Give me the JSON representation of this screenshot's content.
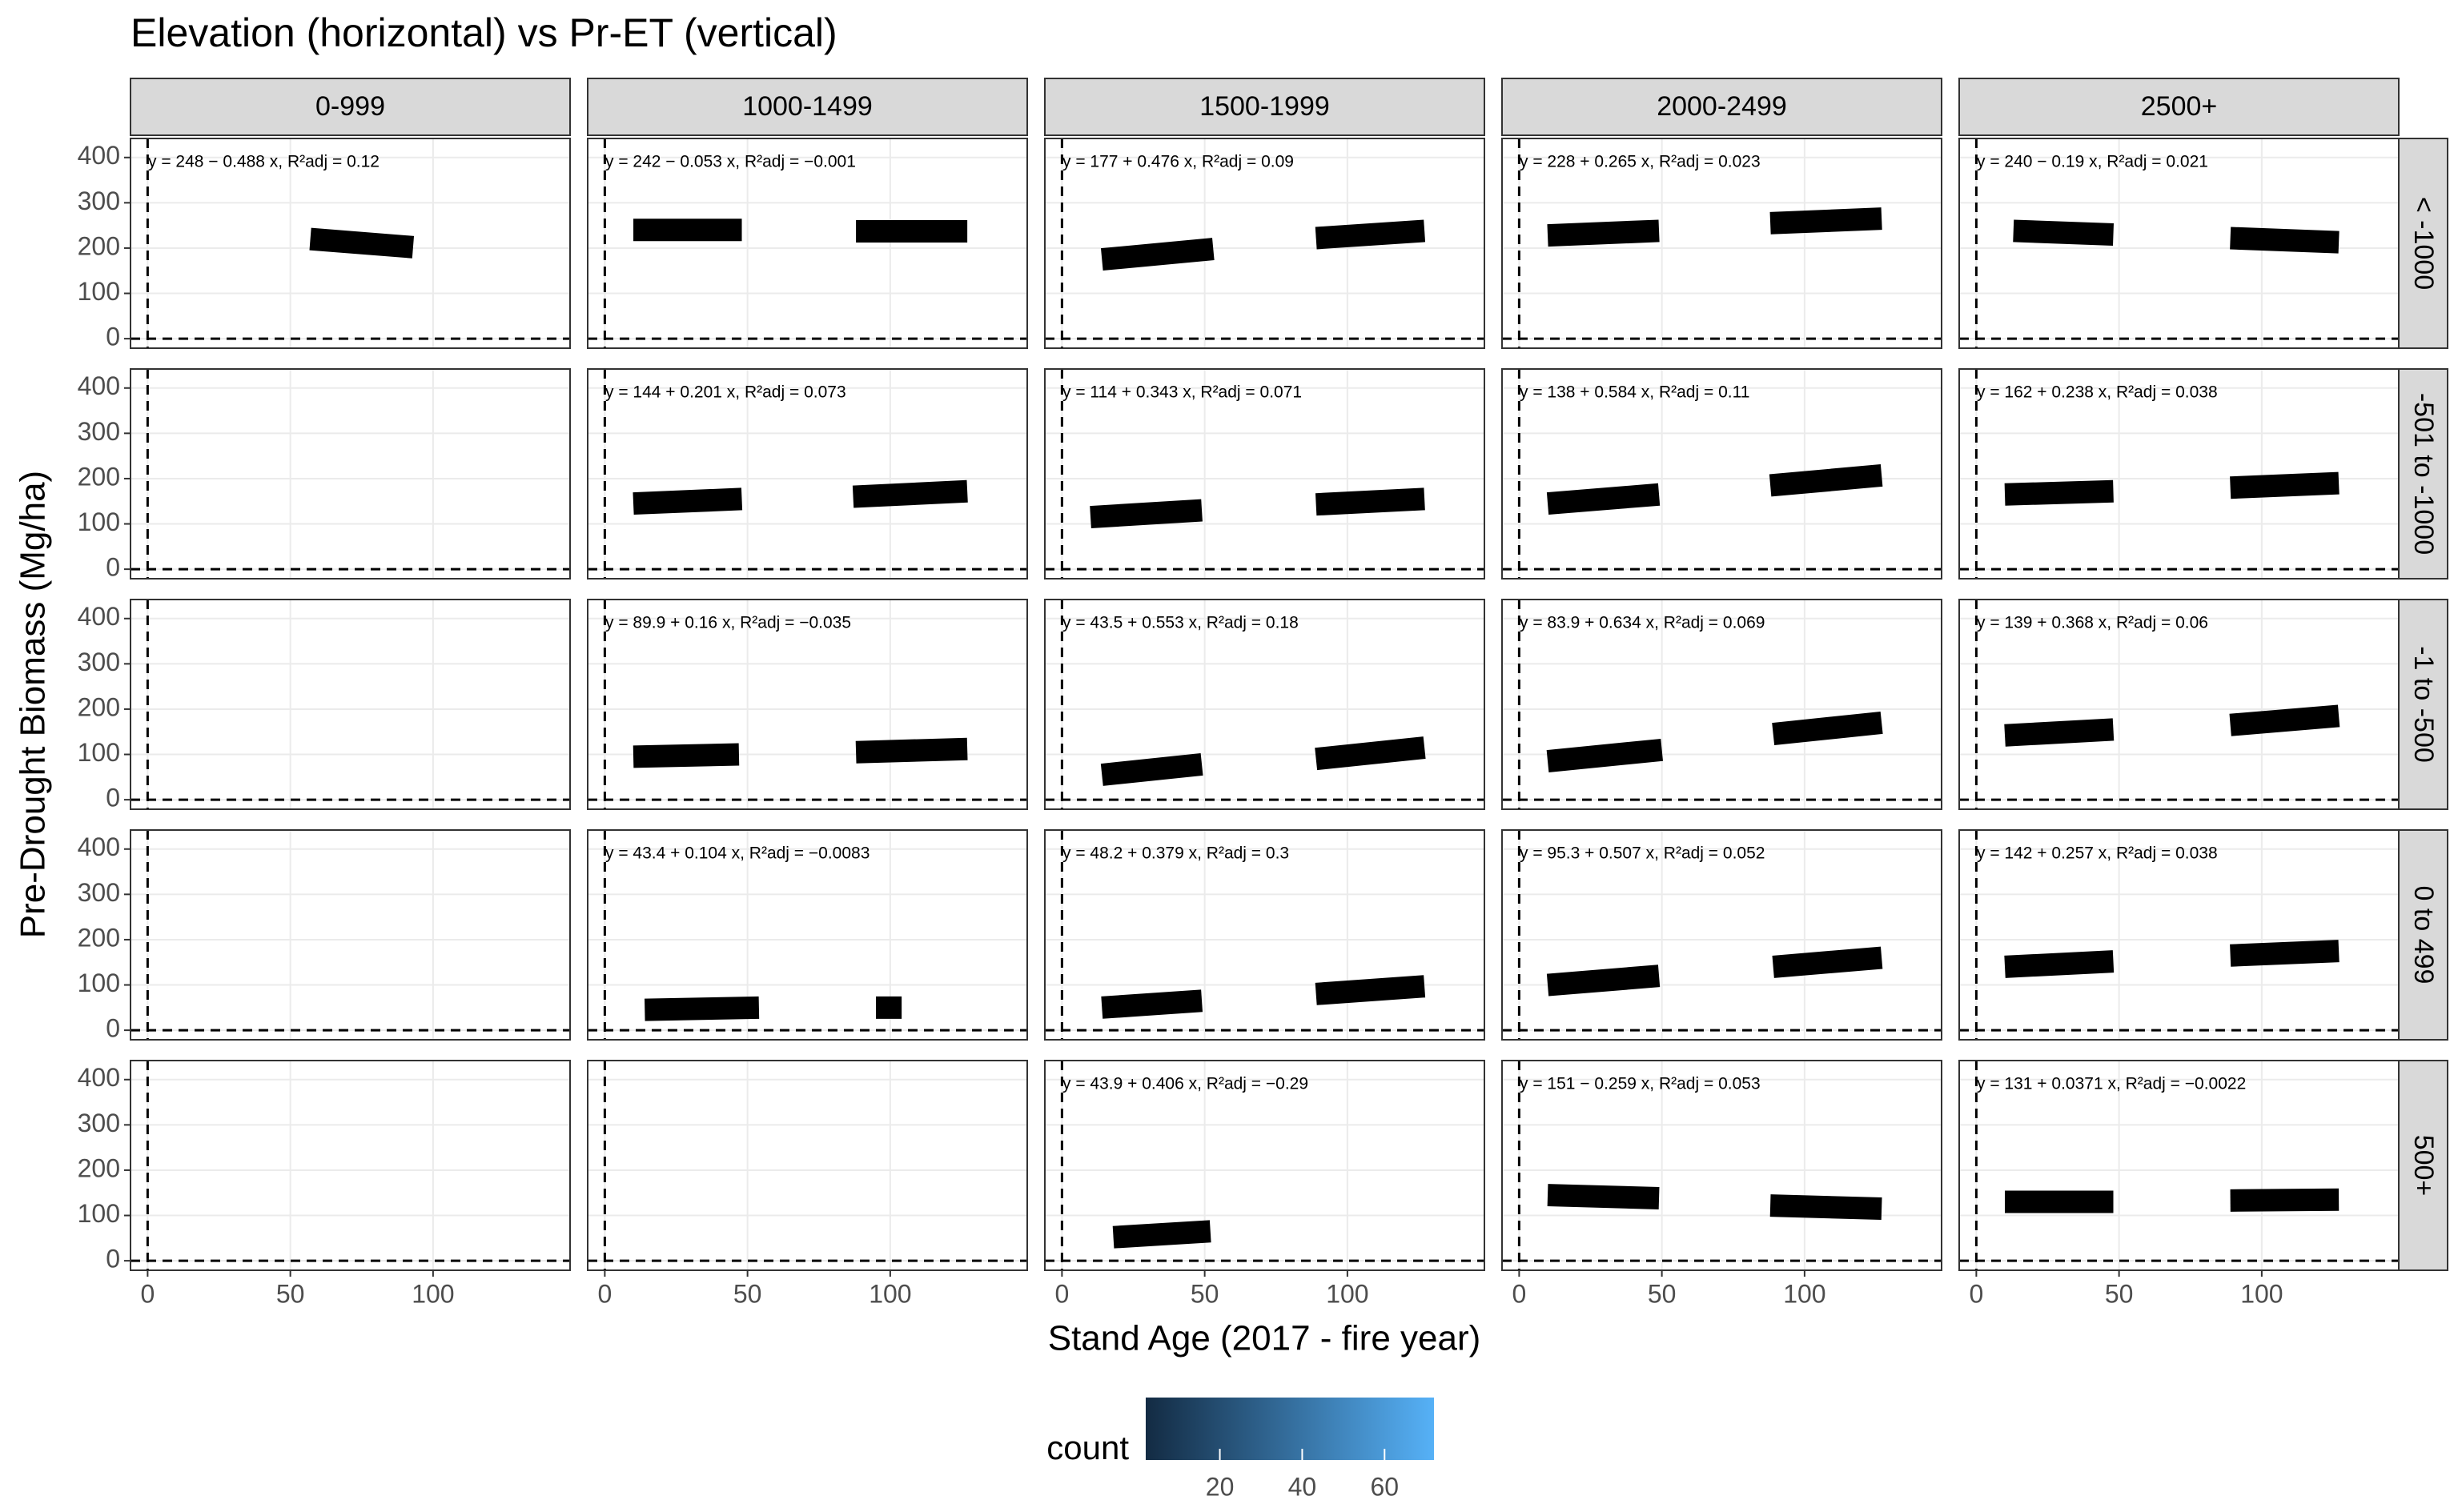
{
  "chart_data": {
    "type": "scatter",
    "title": "Elevation (horizontal) vs Pr-ET (vertical)",
    "x_label": "Stand Age (2017 - fire year)",
    "y_label": "Pre-Drought Biomass (Mg/ha)",
    "col_labels": [
      "0-999",
      "1000-1499",
      "1500-1999",
      "2000-2499",
      "2500+"
    ],
    "row_labels": [
      "< -1000",
      "-501 to -1000",
      "-1 to -500",
      "0 to 499",
      "500+"
    ],
    "xlim": [
      -6,
      148
    ],
    "xticks": [
      0,
      50,
      100
    ],
    "ylim": [
      -21,
      442
    ],
    "yticks": [
      0,
      100,
      200,
      300,
      400
    ],
    "hline": 0,
    "vline": 0,
    "grid": true,
    "line_color": "#000000",
    "panels": [
      [
        {
          "annotation": "y = 248 − 0.488 x, R²adj = 0.12",
          "lines": [
            {
              "x": [
                57,
                93
              ],
              "values": [
                220,
                202
              ]
            }
          ]
        },
        {
          "annotation": "y = 242 − 0.053 x, R²adj = −0.001",
          "lines": [
            {
              "x": [
                10,
                48
              ],
              "values": [
                240,
                240
              ]
            },
            {
              "x": [
                88,
                127
              ],
              "values": [
                237,
                237
              ]
            }
          ]
        },
        {
          "annotation": "y = 177 + 0.476 x, R²adj = 0.09",
          "lines": [
            {
              "x": [
                14,
                53
              ],
              "values": [
                175,
                198
              ]
            },
            {
              "x": [
                89,
                127
              ],
              "values": [
                222,
                238
              ]
            }
          ]
        },
        {
          "annotation": "y = 228 + 0.265 x, R²adj = 0.023",
          "lines": [
            {
              "x": [
                10,
                49
              ],
              "values": [
                228,
                238
              ]
            },
            {
              "x": [
                88,
                127
              ],
              "values": [
                255,
                265
              ]
            }
          ]
        },
        {
          "annotation": "y = 240 − 0.19 x, R²adj = 0.021",
          "lines": [
            {
              "x": [
                13,
                48
              ],
              "values": [
                238,
                230
              ]
            },
            {
              "x": [
                89,
                127
              ],
              "values": [
                222,
                213
              ]
            }
          ]
        }
      ],
      [
        {
          "annotation": null,
          "lines": []
        },
        {
          "annotation": "y = 144 + 0.201 x, R²adj = 0.073",
          "lines": [
            {
              "x": [
                10,
                48
              ],
              "values": [
                145,
                155
              ]
            },
            {
              "x": [
                87,
                127
              ],
              "values": [
                160,
                172
              ]
            }
          ]
        },
        {
          "annotation": "y = 114 + 0.343 x, R²adj = 0.071",
          "lines": [
            {
              "x": [
                10,
                49
              ],
              "values": [
                115,
                130
              ]
            },
            {
              "x": [
                89,
                127
              ],
              "values": [
                143,
                155
              ]
            }
          ]
        },
        {
          "annotation": "y = 138 + 0.584 x, R²adj = 0.11",
          "lines": [
            {
              "x": [
                10,
                49
              ],
              "values": [
                145,
                165
              ]
            },
            {
              "x": [
                88,
                127
              ],
              "values": [
                185,
                207
              ]
            }
          ]
        },
        {
          "annotation": "y = 162 + 0.238 x, R²adj = 0.038",
          "lines": [
            {
              "x": [
                10,
                48
              ],
              "values": [
                165,
                172
              ]
            },
            {
              "x": [
                89,
                127
              ],
              "values": [
                180,
                190
              ]
            }
          ]
        }
      ],
      [
        {
          "annotation": null,
          "lines": []
        },
        {
          "annotation": "y = 89.9 + 0.16 x, R²adj = −0.035",
          "lines": [
            {
              "x": [
                10,
                47
              ],
              "values": [
                95,
                100
              ]
            },
            {
              "x": [
                88,
                127
              ],
              "values": [
                105,
                112
              ]
            }
          ]
        },
        {
          "annotation": "y = 43.5 + 0.553 x, R²adj = 0.18",
          "lines": [
            {
              "x": [
                14,
                49
              ],
              "values": [
                55,
                78
              ]
            },
            {
              "x": [
                89,
                127
              ],
              "values": [
                90,
                115
              ]
            }
          ]
        },
        {
          "annotation": "y = 83.9 + 0.634 x, R²adj = 0.069",
          "lines": [
            {
              "x": [
                10,
                50
              ],
              "values": [
                85,
                110
              ]
            },
            {
              "x": [
                89,
                127
              ],
              "values": [
                145,
                170
              ]
            }
          ]
        },
        {
          "annotation": "y = 139 + 0.368 x, R²adj = 0.06",
          "lines": [
            {
              "x": [
                10,
                48
              ],
              "values": [
                142,
                155
              ]
            },
            {
              "x": [
                89,
                127
              ],
              "values": [
                165,
                185
              ]
            }
          ]
        }
      ],
      [
        {
          "annotation": null,
          "lines": []
        },
        {
          "annotation": "y = 43.4 + 0.104 x, R²adj = −0.0083",
          "lines": [
            {
              "x": [
                14,
                54
              ],
              "values": [
                45,
                50
              ]
            },
            {
              "x": [
                95,
                104
              ],
              "values": [
                50,
                50
              ]
            }
          ]
        },
        {
          "annotation": "y = 48.2 + 0.379 x, R²adj = 0.3",
          "lines": [
            {
              "x": [
                14,
                49
              ],
              "values": [
                50,
                65
              ]
            },
            {
              "x": [
                89,
                127
              ],
              "values": [
                80,
                97
              ]
            }
          ]
        },
        {
          "annotation": "y = 95.3 + 0.507 x, R²adj = 0.052",
          "lines": [
            {
              "x": [
                10,
                49
              ],
              "values": [
                100,
                120
              ]
            },
            {
              "x": [
                89,
                127
              ],
              "values": [
                140,
                160
              ]
            }
          ]
        },
        {
          "annotation": "y = 142 + 0.257 x, R²adj = 0.038",
          "lines": [
            {
              "x": [
                10,
                48
              ],
              "values": [
                140,
                152
              ]
            },
            {
              "x": [
                89,
                127
              ],
              "values": [
                165,
                175
              ]
            }
          ]
        }
      ],
      [
        {
          "annotation": null,
          "lines": []
        },
        {
          "annotation": null,
          "lines": []
        },
        {
          "annotation": "y = 43.9 + 0.406 x, R²adj = −0.29",
          "lines": [
            {
              "x": [
                18,
                52
              ],
              "values": [
                52,
                65
              ]
            }
          ]
        },
        {
          "annotation": "y = 151 − 0.259 x, R²adj = 0.053",
          "lines": [
            {
              "x": [
                10,
                49
              ],
              "values": [
                145,
                138
              ]
            },
            {
              "x": [
                88,
                127
              ],
              "values": [
                122,
                115
              ]
            }
          ]
        },
        {
          "annotation": "y = 131 + 0.0371 x, R²adj = −0.0022",
          "lines": [
            {
              "x": [
                10,
                48
              ],
              "values": [
                130,
                130
              ]
            },
            {
              "x": [
                89,
                127
              ],
              "values": [
                133,
                135
              ]
            }
          ]
        }
      ]
    ],
    "colorbar": {
      "title": "count",
      "lim": [
        2,
        72
      ],
      "ticks": [
        20,
        40,
        60
      ],
      "colors": [
        "#132B43",
        "#56B1F7"
      ]
    }
  }
}
